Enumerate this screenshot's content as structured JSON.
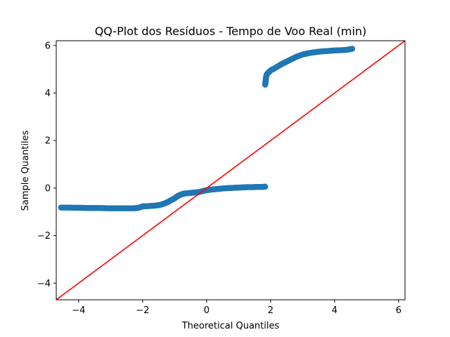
{
  "chart_data": {
    "type": "scatter",
    "title": "QQ-Plot dos Resíduos - Tempo de Voo Real (min)",
    "xlabel": "Theoretical Quantiles",
    "ylabel": "Sample Quantiles",
    "xlim": [
      -4.7,
      6.2
    ],
    "ylim": [
      -4.7,
      6.2
    ],
    "xticks": [
      {
        "value": -4,
        "label": "−4"
      },
      {
        "value": -2,
        "label": "−2"
      },
      {
        "value": 0,
        "label": "0"
      },
      {
        "value": 2,
        "label": "2"
      },
      {
        "value": 4,
        "label": "4"
      },
      {
        "value": 6,
        "label": "6"
      }
    ],
    "yticks": [
      {
        "value": -4,
        "label": "−4"
      },
      {
        "value": -2,
        "label": "−2"
      },
      {
        "value": 0,
        "label": "0"
      },
      {
        "value": 2,
        "label": "2"
      },
      {
        "value": 4,
        "label": "4"
      },
      {
        "value": 6,
        "label": "6"
      }
    ],
    "grid": false,
    "series": [
      {
        "marker_color": "#1f77b4",
        "points": [
          [
            -4.55,
            -0.82
          ],
          [
            -4.35,
            -0.82
          ],
          [
            -4.1,
            -0.83
          ],
          [
            -3.9,
            -0.83
          ],
          [
            -3.7,
            -0.84
          ],
          [
            -3.5,
            -0.84
          ],
          [
            -3.3,
            -0.84
          ],
          [
            -3.1,
            -0.85
          ],
          [
            -2.9,
            -0.85
          ],
          [
            -2.7,
            -0.85
          ],
          [
            -2.5,
            -0.85
          ],
          [
            -2.3,
            -0.85
          ],
          [
            -2.15,
            -0.84
          ],
          [
            -2.0,
            -0.77
          ],
          [
            -1.85,
            -0.76
          ],
          [
            -1.7,
            -0.75
          ],
          [
            -1.55,
            -0.73
          ],
          [
            -1.4,
            -0.69
          ],
          [
            -1.3,
            -0.64
          ],
          [
            -1.2,
            -0.58
          ],
          [
            -1.1,
            -0.5
          ],
          [
            -1.0,
            -0.43
          ],
          [
            -0.9,
            -0.33
          ],
          [
            -0.8,
            -0.27
          ],
          [
            -0.7,
            -0.23
          ],
          [
            -0.55,
            -0.21
          ],
          [
            -0.4,
            -0.19
          ],
          [
            -0.25,
            -0.17
          ],
          [
            -0.1,
            -0.12
          ],
          [
            0.0,
            -0.09
          ],
          [
            0.1,
            -0.07
          ],
          [
            0.25,
            -0.05
          ],
          [
            0.4,
            -0.03
          ],
          [
            0.55,
            -0.01
          ],
          [
            0.7,
            0.0
          ],
          [
            0.85,
            0.01
          ],
          [
            1.0,
            0.02
          ],
          [
            1.15,
            0.03
          ],
          [
            1.3,
            0.04
          ],
          [
            1.45,
            0.04
          ],
          [
            1.6,
            0.05
          ],
          [
            1.75,
            0.05
          ],
          [
            1.83,
            0.06
          ],
          [
            1.83,
            4.35
          ],
          [
            1.84,
            4.45
          ],
          [
            1.85,
            4.6
          ],
          [
            1.87,
            4.75
          ],
          [
            1.9,
            4.82
          ],
          [
            1.95,
            4.88
          ],
          [
            2.0,
            4.95
          ],
          [
            2.1,
            5.02
          ],
          [
            2.2,
            5.1
          ],
          [
            2.35,
            5.22
          ],
          [
            2.5,
            5.32
          ],
          [
            2.65,
            5.42
          ],
          [
            2.8,
            5.52
          ],
          [
            3.0,
            5.62
          ],
          [
            3.2,
            5.68
          ],
          [
            3.4,
            5.72
          ],
          [
            3.6,
            5.75
          ],
          [
            3.8,
            5.77
          ],
          [
            4.0,
            5.79
          ],
          [
            4.2,
            5.8
          ],
          [
            4.4,
            5.82
          ],
          [
            4.55,
            5.86
          ]
        ]
      }
    ],
    "reference_line": {
      "color": "#ff0000",
      "slope": 1,
      "intercept": 0
    }
  }
}
